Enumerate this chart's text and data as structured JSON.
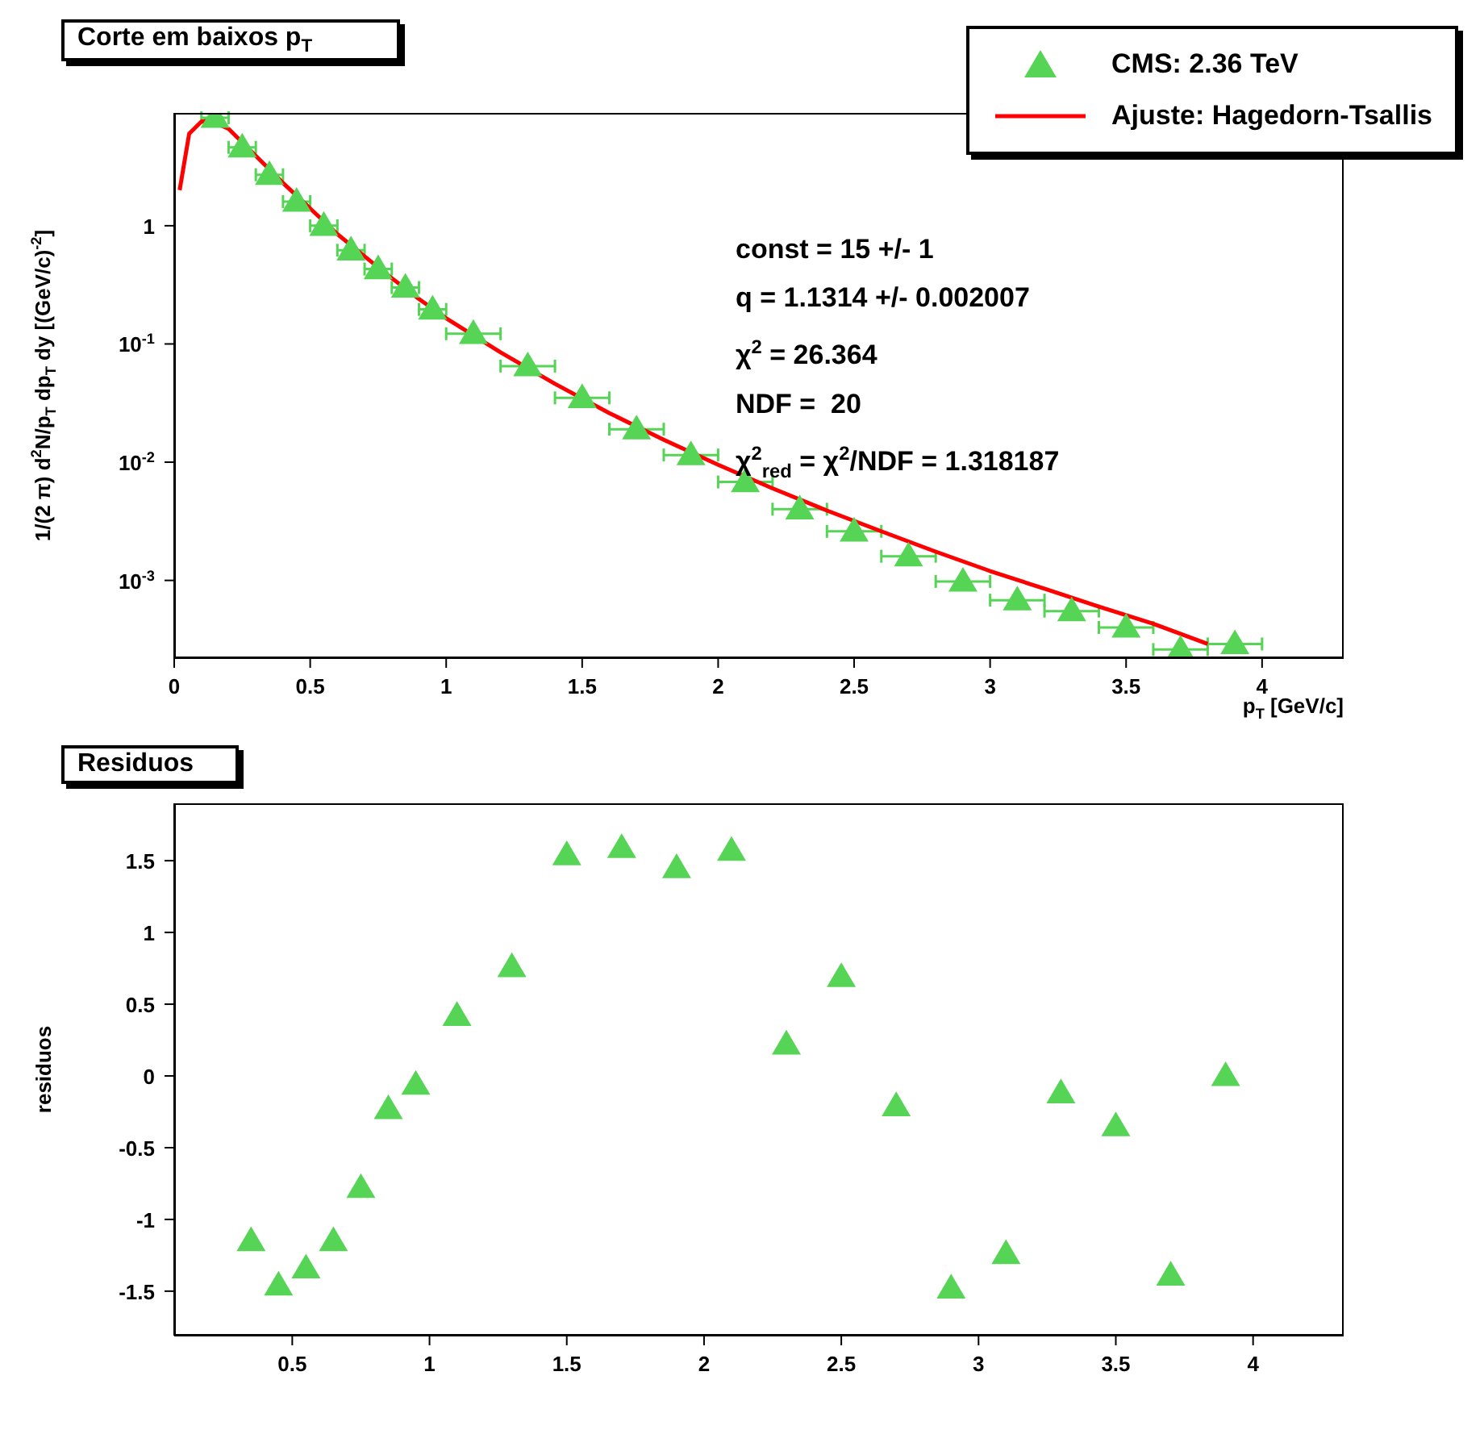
{
  "chart_data": [
    {
      "type": "scatter",
      "title": "Corte em baixos p$_{T}$",
      "xlabel": "p$_{T}$ [GeV/c]",
      "ylabel": "1/(2 π) d$^{2}$N/p$_{T}$ dp$_{T}$ dy [(GeV/c)$^{-2}$]",
      "log": "y",
      "legend": "top right",
      "xlim": [
        0,
        4.3
      ],
      "xticks": [
        0,
        0.5,
        1,
        1.5,
        2,
        2.5,
        3,
        3.5,
        4
      ],
      "ylim": [
        0.00022,
        9
      ],
      "yticks": [
        {
          "value": 0.001,
          "label": "10$^{-3}$"
        },
        {
          "value": 0.01,
          "label": "10$^{-2}$"
        },
        {
          "value": 0.1,
          "label": "10$^{-1}$"
        },
        1
      ],
      "annotations": [
        "const = 15 +/- 1",
        "q = 1.1314 +/- 0.002007",
        "χ$^{2}$ = 26.364",
        "NDF =  20",
        "χ$^{2}$$_{red}$ = χ$^{2}$/NDF = 1.318187"
      ],
      "series": [
        {
          "name": "CMS: 2.36 TeV",
          "marker": "triangle",
          "color": "#55d455",
          "x": [
            0.15,
            0.25,
            0.35,
            0.45,
            0.55,
            0.65,
            0.75,
            0.85,
            0.95,
            1.1,
            1.3,
            1.5,
            1.7,
            1.9,
            2.1,
            2.3,
            2.5,
            2.7,
            2.9,
            3.1,
            3.3,
            3.5,
            3.7,
            3.9
          ],
          "values": [
            8.2,
            4.6,
            2.7,
            1.6,
            1.0,
            0.62,
            0.43,
            0.3,
            0.196,
            0.122,
            0.065,
            0.035,
            0.019,
            0.0115,
            0.0068,
            0.004,
            0.0026,
            0.0016,
            0.00098,
            0.00068,
            0.00055,
            0.0004,
            0.00026,
            0.00029
          ],
          "xerrors": [
            0.05,
            0.05,
            0.05,
            0.05,
            0.05,
            0.05,
            0.05,
            0.05,
            0.05,
            0.1,
            0.1,
            0.1,
            0.1,
            0.1,
            0.1,
            0.1,
            0.1,
            0.1,
            0.1,
            0.1,
            0.1,
            0.1,
            0.1,
            0.1
          ]
        },
        {
          "type": "line",
          "name": "Ajuste: Hagedorn-Tsallis",
          "color": "#ff0000",
          "x": [
            0.02,
            0.055,
            0.1,
            0.13,
            0.2,
            0.3,
            0.4,
            0.5,
            0.6,
            0.7,
            0.8,
            0.9,
            1.0,
            1.2,
            1.4,
            1.6,
            1.8,
            2.0,
            2.2,
            2.4,
            2.6,
            2.8,
            3.0,
            3.2,
            3.4,
            3.6,
            3.8
          ],
          "values": [
            2.0,
            6.0,
            7.6,
            7.8,
            6.6,
            3.9,
            2.3,
            1.4,
            0.85,
            0.55,
            0.36,
            0.24,
            0.165,
            0.085,
            0.046,
            0.026,
            0.0155,
            0.0095,
            0.006,
            0.0039,
            0.0026,
            0.00175,
            0.0012,
            0.00085,
            0.0006,
            0.00043,
            0.00029
          ]
        }
      ]
    },
    {
      "type": "scatter",
      "title": "Residuos",
      "ylabel": "residuos",
      "marker": "triangle",
      "xlim": [
        0.07,
        4.33
      ],
      "xticks": [
        0.5,
        1,
        1.5,
        2,
        2.5,
        3,
        3.5,
        4
      ],
      "ylim": [
        -1.81,
        1.9
      ],
      "yticks": [
        -1.5,
        -1,
        -0.5,
        0,
        0.5,
        1,
        1.5
      ],
      "series": [
        {
          "color": "#55d455",
          "x": [
            0.35,
            0.45,
            0.55,
            0.65,
            0.75,
            0.85,
            0.95,
            1.1,
            1.3,
            1.5,
            1.7,
            1.9,
            2.1,
            2.3,
            2.5,
            2.7,
            2.9,
            3.1,
            3.3,
            3.5,
            3.7,
            3.9
          ],
          "values": [
            -1.15,
            -1.46,
            -1.34,
            -1.15,
            -0.78,
            -0.23,
            -0.06,
            0.42,
            0.76,
            1.54,
            1.59,
            1.45,
            1.57,
            0.22,
            0.69,
            -0.21,
            -1.48,
            -1.24,
            -0.12,
            -0.35,
            -1.39,
            0.0
          ]
        }
      ]
    }
  ]
}
